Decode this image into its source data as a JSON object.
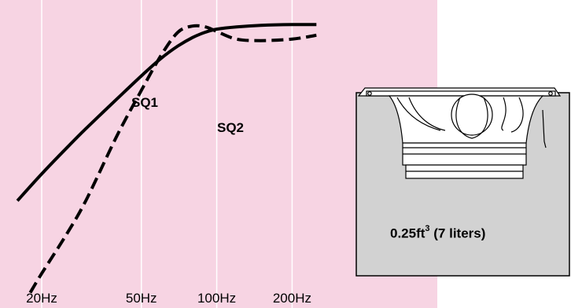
{
  "chart_data": {
    "type": "line",
    "title": "",
    "xlabel": "",
    "ylabel": "",
    "x_scale": "log",
    "x_ticks": [
      20,
      50,
      100,
      200
    ],
    "x_tick_labels": [
      "20Hz",
      "50Hz",
      "100Hz",
      "200Hz"
    ],
    "xlim": [
      15,
      250
    ],
    "grid": "vertical",
    "background": "#f7d4e3",
    "series": [
      {
        "name": "SQ1",
        "style": "solid",
        "color": "#000000",
        "x": [
          16,
          20,
          25,
          30,
          40,
          50,
          60,
          70,
          80,
          90,
          100,
          120,
          150,
          200,
          250
        ],
        "y": [
          -22.0,
          -18.5,
          -15.2,
          -12.6,
          -8.7,
          -5.7,
          -3.4,
          -1.8,
          -0.7,
          0.0,
          0.4,
          0.7,
          0.9,
          1.0,
          1.0
        ]
      },
      {
        "name": "SQ2",
        "style": "dashed",
        "color": "#000000",
        "x": [
          18,
          20,
          25,
          30,
          40,
          50,
          60,
          70,
          80,
          90,
          100,
          120,
          150,
          200,
          250
        ],
        "y": [
          -34.0,
          -31.5,
          -26.5,
          -22.0,
          -13.5,
          -7.6,
          -3.0,
          0.0,
          0.8,
          0.7,
          0.1,
          -0.9,
          -1.1,
          -0.9,
          -0.4
        ]
      }
    ]
  },
  "enclosure": {
    "volume": "0.25ft",
    "exponent": "3",
    "unit_note": " (7 liters)"
  }
}
